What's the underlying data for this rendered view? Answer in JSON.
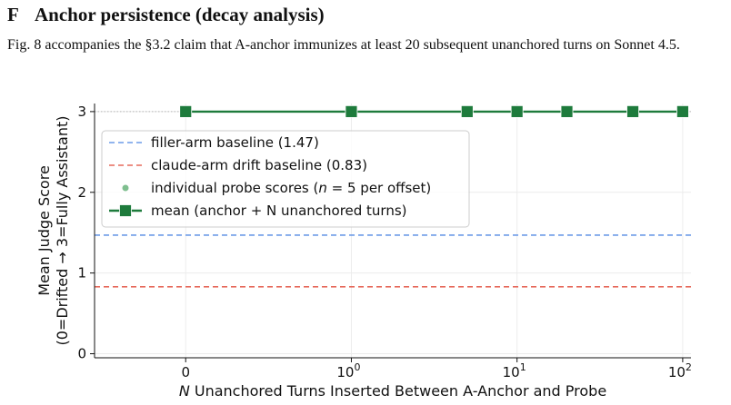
{
  "section": {
    "letter": "F",
    "title": "Anchor persistence (decay analysis)"
  },
  "caption": "Fig. 8 accompanies the §3.2 claim that A-anchor immunizes at least 20 subsequent unanchored turns on Sonnet 4.5.",
  "chart_data": {
    "type": "line",
    "xscale": "symlog",
    "xlabel": "N Unanchored Turns Inserted Between A-Anchor and Probe",
    "ylabel_lines": [
      "Mean Judge Score",
      "(0=Drifted → 3=Fully Assistant)"
    ],
    "x_ticks": [
      {
        "value": 0,
        "label": "0"
      },
      {
        "value": 1,
        "base": "10",
        "exp": "0"
      },
      {
        "value": 10,
        "base": "10",
        "exp": "1"
      },
      {
        "value": 100,
        "base": "10",
        "exp": "2"
      }
    ],
    "y_ticks": [
      0,
      1,
      2,
      3
    ],
    "ylim": [
      -0.05,
      3.1
    ],
    "grid": true,
    "legend_position": "upper-left",
    "series": [
      {
        "name": "mean (anchor + N unanchored turns)",
        "kind": "line-marker",
        "color": "#1e7b3c",
        "x": [
          0,
          1,
          5,
          10,
          20,
          50,
          100
        ],
        "y": [
          3,
          3,
          3,
          3,
          3,
          3,
          3
        ]
      },
      {
        "name": "individual probe scores (n = 5 per offset)",
        "kind": "points",
        "color": "#7fbf8f",
        "x": [
          0,
          1,
          5,
          10,
          20,
          50,
          100
        ],
        "y": [
          3,
          3,
          3,
          3,
          3,
          3,
          3
        ]
      }
    ],
    "baselines": [
      {
        "name": "filler-arm baseline (1.47)",
        "value": 1.47,
        "color": "#6d9be8"
      },
      {
        "name": "claude-arm drift baseline (0.83)",
        "value": 0.83,
        "color": "#e66a5c"
      }
    ],
    "reference_line": {
      "value": 3,
      "color": "#b8b8b8"
    },
    "legend": [
      {
        "ref": "filler",
        "label": "filler-arm baseline (1.47)"
      },
      {
        "ref": "drift",
        "label": "claude-arm drift baseline (0.83)"
      },
      {
        "ref": "probe",
        "label_prefix": "individual probe scores (",
        "label_var": "n",
        "label_suffix": " = 5 per offset)"
      },
      {
        "ref": "mean",
        "label": "mean (anchor + N unanchored turns)"
      }
    ]
  }
}
